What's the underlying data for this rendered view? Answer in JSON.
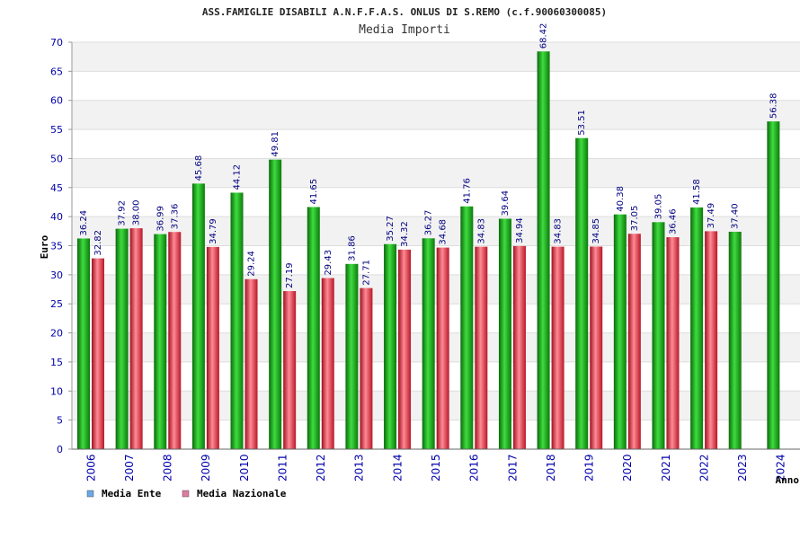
{
  "chart_data": {
    "type": "bar",
    "title": "ASS.FAMIGLIE DISABILI A.N.F.F.A.S. ONLUS DI S.REMO (c.f.90060300085)",
    "subtitle": "Media Importi",
    "xlabel": "Anno",
    "ylabel": "Euro",
    "ylim": [
      0,
      70
    ],
    "yticks": [
      "0",
      "5",
      "10",
      "15",
      "20",
      "25",
      "30",
      "35",
      "40",
      "45",
      "50",
      "55",
      "60",
      "65",
      "70"
    ],
    "grid": "horizontal bands",
    "legend_position": "bottom-left",
    "categories": [
      "2006",
      "2007",
      "2008",
      "2009",
      "2010",
      "2011",
      "2012",
      "2013",
      "2014",
      "2015",
      "2016",
      "2017",
      "2018",
      "2019",
      "2020",
      "2021",
      "2022",
      "2023",
      "2024"
    ],
    "series": [
      {
        "name": "Media Ente",
        "legend_color": "#6aa9e6",
        "bar_color": "#1fa51f",
        "values": [
          36.24,
          37.92,
          36.99,
          45.68,
          44.12,
          49.81,
          41.65,
          31.86,
          35.27,
          36.27,
          41.76,
          39.64,
          68.42,
          53.51,
          40.38,
          39.05,
          41.58,
          37.4,
          56.38
        ],
        "labels": [
          "36.24",
          "37.92",
          "36.99",
          "45.68",
          "44.12",
          "49.81",
          "41.65",
          "31.86",
          "35.27",
          "36.27",
          "41.76",
          "39.64",
          "68.42",
          "53.51",
          "40.38",
          "39.05",
          "41.58",
          "37.40",
          "56.38"
        ]
      },
      {
        "name": "Media Nazionale",
        "legend_color": "#e07aa0",
        "bar_color": "#e03a4a",
        "values": [
          32.82,
          38.0,
          37.36,
          34.79,
          29.24,
          27.19,
          29.43,
          27.71,
          34.32,
          34.68,
          34.83,
          34.94,
          34.83,
          34.85,
          37.05,
          36.46,
          37.49,
          null,
          null
        ],
        "labels": [
          "32.82",
          "38.00",
          "37.36",
          "34.79",
          "29.24",
          "27.19",
          "29.43",
          "27.71",
          "34.32",
          "34.68",
          "34.83",
          "34.94",
          "34.83",
          "34.85",
          "37.05",
          "36.46",
          "37.49",
          null,
          null
        ]
      }
    ]
  }
}
